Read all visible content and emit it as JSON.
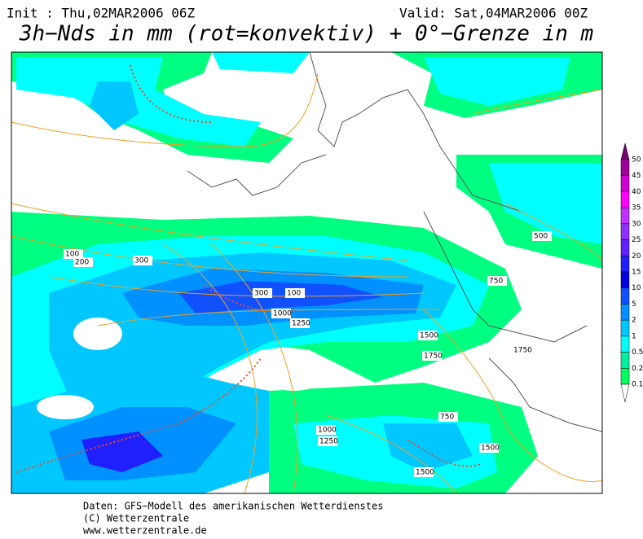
{
  "header": {
    "init": "Init : Thu,02MAR2006 06Z",
    "valid": "Valid: Sat,04MAR2006 00Z",
    "title": "3h−Nds in mm (rot=konvektiv) + 0°−Grenze in m"
  },
  "colorbar": {
    "labels": [
      "50",
      "45",
      "40",
      "35",
      "30",
      "25",
      "20",
      "15",
      "10",
      "5",
      "2",
      "1",
      "0.5",
      "0.2",
      "0.1"
    ],
    "colors": [
      "#7a0070",
      "#a0009a",
      "#d000d0",
      "#ff00ff",
      "#c030ff",
      "#9030ff",
      "#6020ff",
      "#2020ff",
      "#0000e0",
      "#1050ff",
      "#0090ff",
      "#00c8ff",
      "#00ffff",
      "#00f0a0",
      "#00ff60",
      "#ffffff"
    ]
  },
  "contour_labels": [
    "100",
    "200",
    "300",
    "300",
    "100",
    "1000",
    "1250",
    "1500",
    "750",
    "500",
    "1750",
    "1000",
    "1250",
    "1500",
    "750",
    "1750",
    "1500"
  ],
  "footer": {
    "source": "Daten: GFS−Modell des amerikanischen Wetterdienstes",
    "copyright": "(C) Wetterzentrale",
    "url": "www.wetterzentrale.de"
  }
}
